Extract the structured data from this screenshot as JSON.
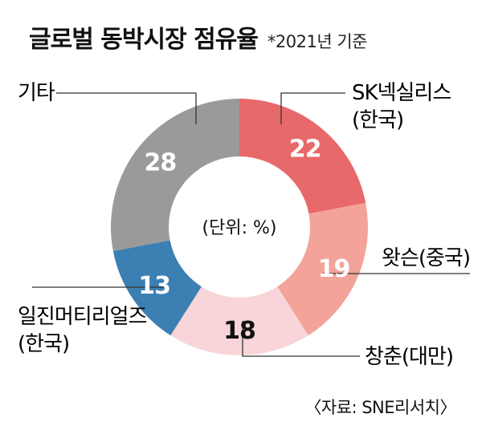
{
  "header": {
    "title": "글로벌 동박시장 점유율",
    "subtitle": "*2021년 기준"
  },
  "center_label": "(단위: %)",
  "source": "〈자료: SNE리서치〉",
  "colors": {
    "sk": "#e8696a",
    "wason": "#f3a399",
    "changchun": "#f8d5d8",
    "iljin": "#3b7fb3",
    "other": "#9a9a9a",
    "leader": "#333333"
  },
  "chart_data": {
    "type": "pie",
    "unit": "%",
    "slices": [
      {
        "label_lines": [
          "SK넥실리스",
          "(한국)"
        ],
        "value": 22,
        "color": "#e8696a"
      },
      {
        "label_lines": [
          "왓슨(중국)"
        ],
        "value": 19,
        "color": "#f3a399"
      },
      {
        "label_lines": [
          "창춘(대만)"
        ],
        "value": 18,
        "color": "#f8d5d8"
      },
      {
        "label_lines": [
          "일진머티리얼즈",
          "(한국)"
        ],
        "value": 13,
        "color": "#3b7fb3"
      },
      {
        "label_lines": [
          "기타"
        ],
        "value": 28,
        "color": "#9a9a9a"
      }
    ]
  }
}
